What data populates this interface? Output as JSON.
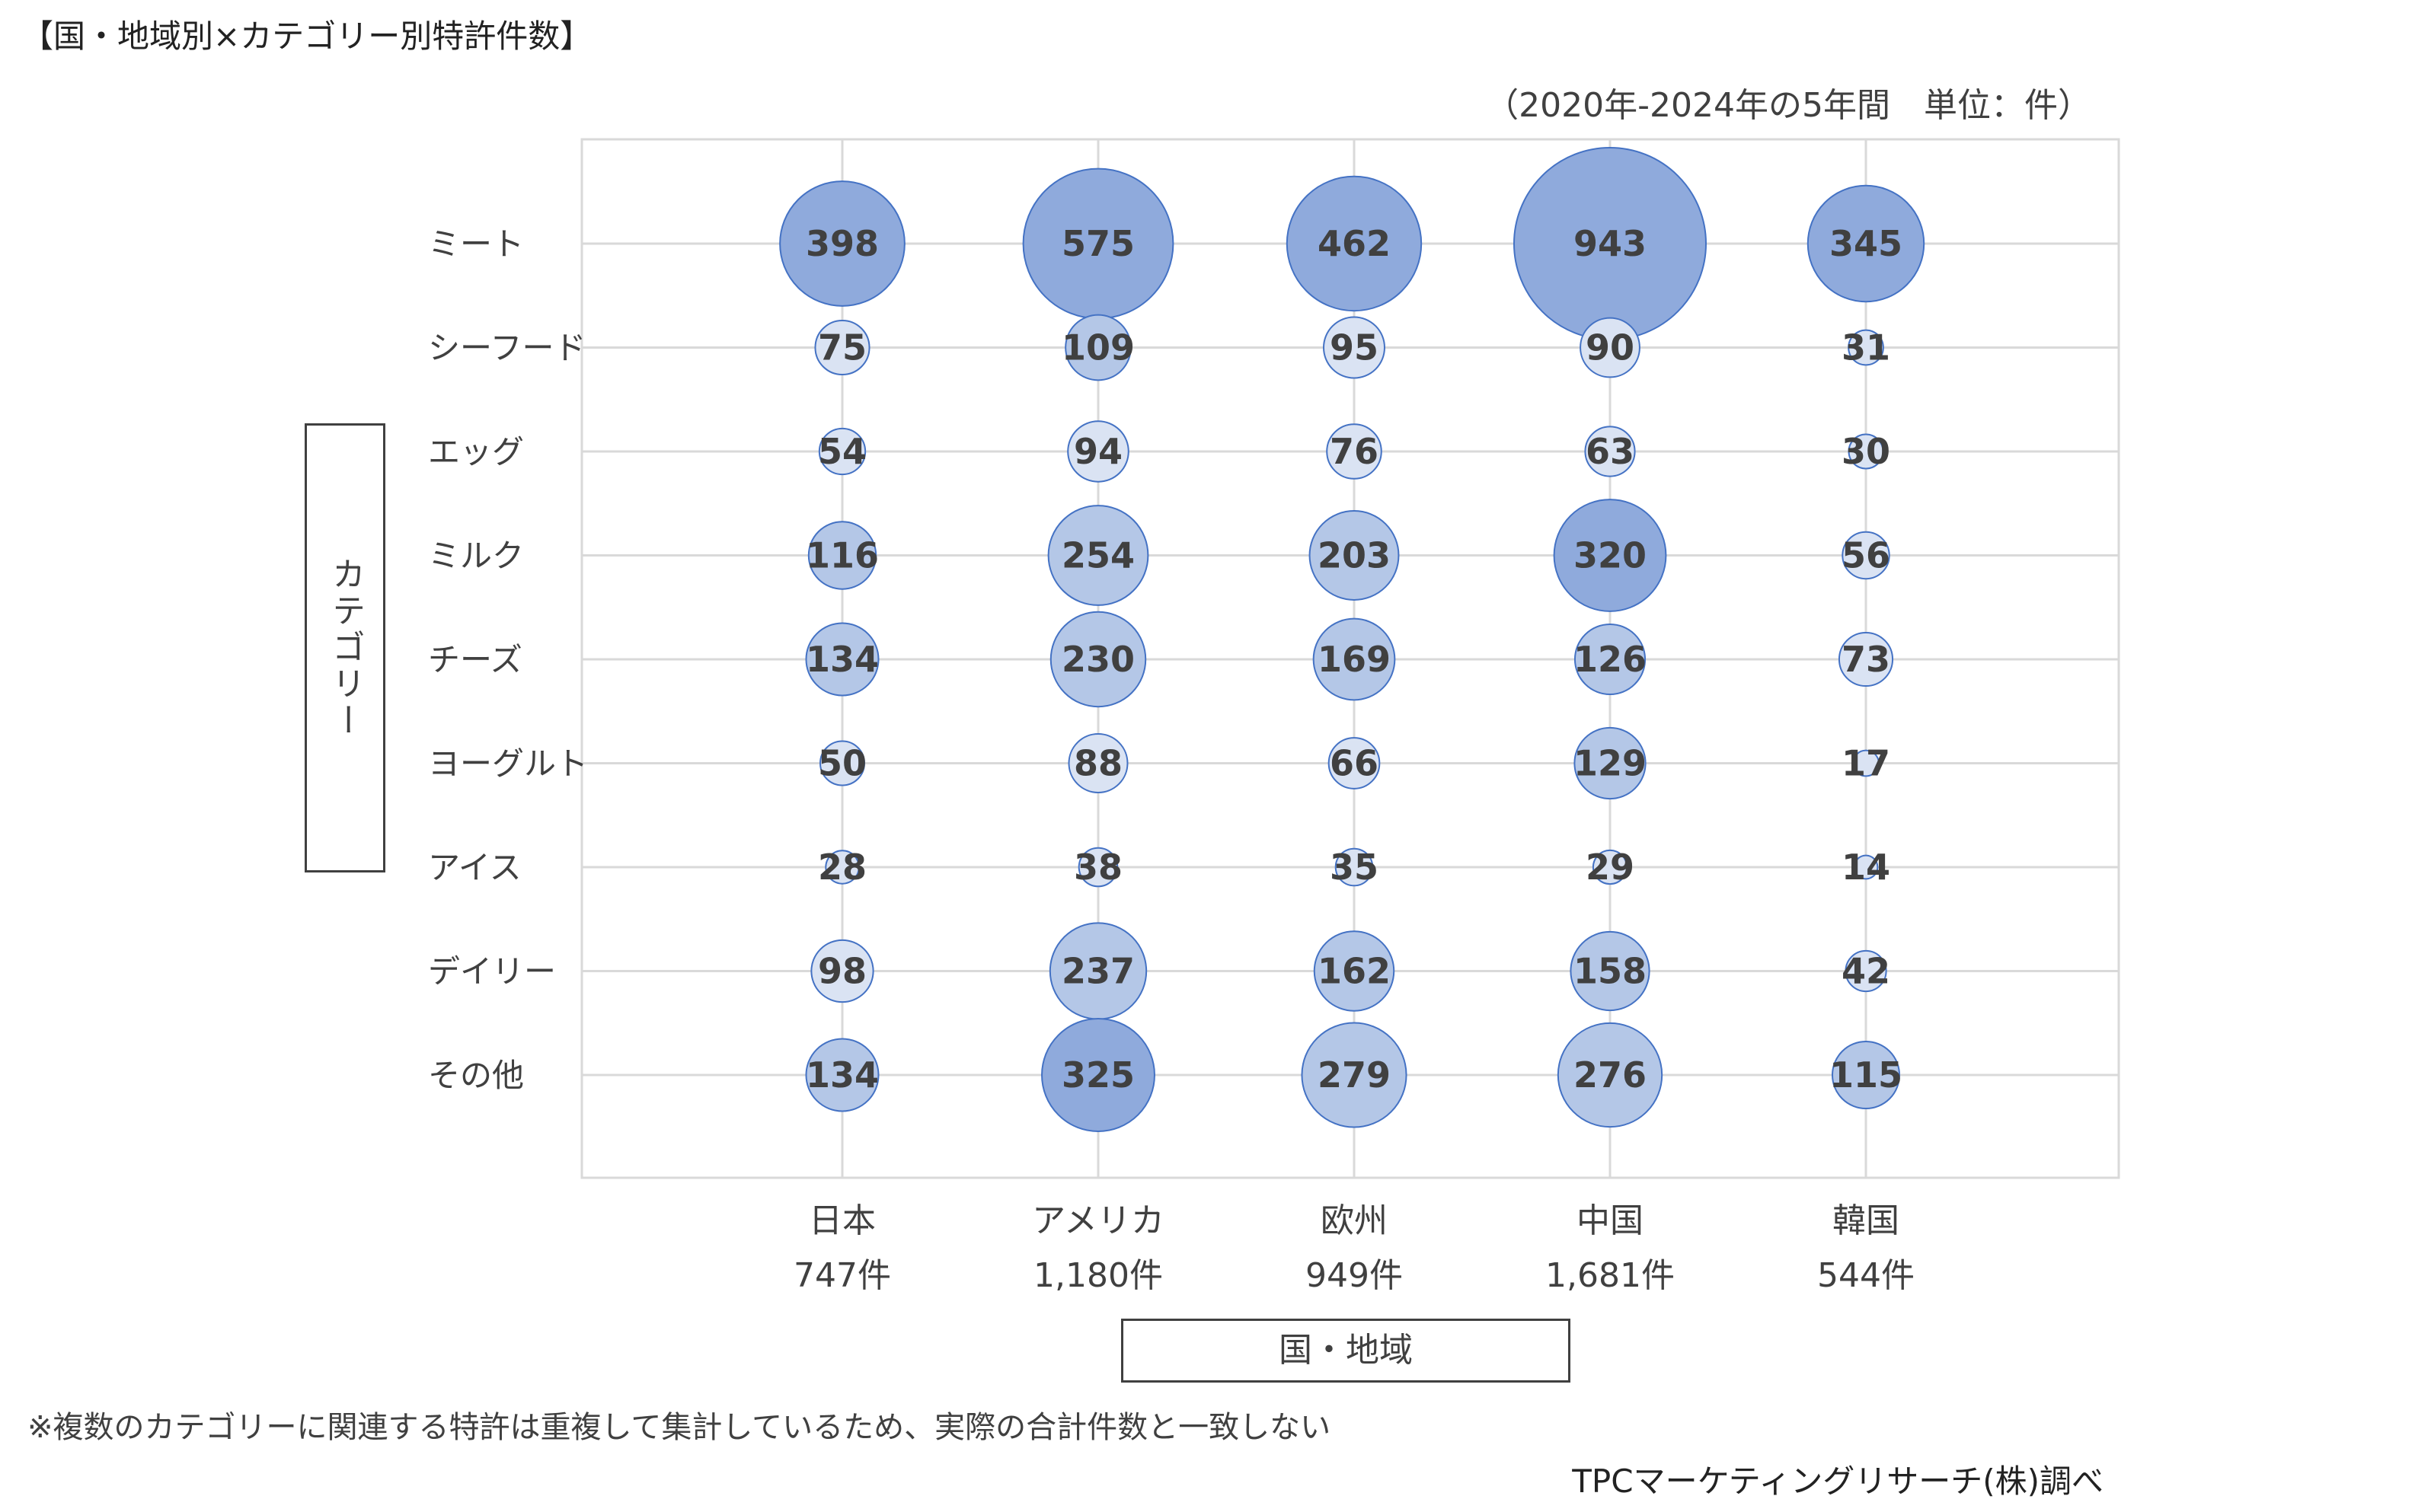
{
  "title": "【国・地域別×カテゴリー別特許件数】",
  "period_note": "（2020年-2024年の5年間　単位：件）",
  "footnote": "※複数のカテゴリーに関連する特許は重複して集計しているため、実際の合計件数と一致しない",
  "source": "TPCマーケティングリサーチ(株)調べ",
  "axis_titles": {
    "y": "カテゴリー",
    "x": "国・地域"
  },
  "colors": {
    "dark": "#8FAADC",
    "mid": "#B4C7E7",
    "light": "#DAE3F3",
    "edge": "#4472C4",
    "grid": "#D9D9D9",
    "label": "#404040"
  },
  "chart_data": {
    "type": "bubble",
    "title": "【国・地域別×カテゴリー別特許件数】",
    "xlabel": "国・地域",
    "ylabel": "カテゴリー",
    "x_categories": [
      {
        "name": "日本",
        "total": "747件"
      },
      {
        "name": "アメリカ",
        "total": "1,180件"
      },
      {
        "name": "欧州",
        "total": "949件"
      },
      {
        "name": "中国",
        "total": "1,681件"
      },
      {
        "name": "韓国",
        "total": "544件"
      }
    ],
    "y_categories": [
      "ミート",
      "シーフード",
      "エッグ",
      "ミルク",
      "チーズ",
      "ヨーグルト",
      "アイス",
      "デイリー",
      "その他"
    ],
    "values": [
      [
        398,
        575,
        462,
        943,
        345
      ],
      [
        75,
        109,
        95,
        90,
        31
      ],
      [
        54,
        94,
        76,
        63,
        30
      ],
      [
        116,
        254,
        203,
        320,
        56
      ],
      [
        134,
        230,
        169,
        126,
        73
      ],
      [
        50,
        88,
        66,
        129,
        17
      ],
      [
        28,
        38,
        35,
        29,
        14
      ],
      [
        98,
        237,
        162,
        158,
        42
      ],
      [
        134,
        325,
        279,
        276,
        115
      ]
    ],
    "size_encoding": "bubble area proportional to value",
    "color_bins": [
      {
        "min": 300,
        "color": "dark"
      },
      {
        "min": 100,
        "color": "mid"
      },
      {
        "min": 0,
        "color": "light"
      }
    ]
  }
}
